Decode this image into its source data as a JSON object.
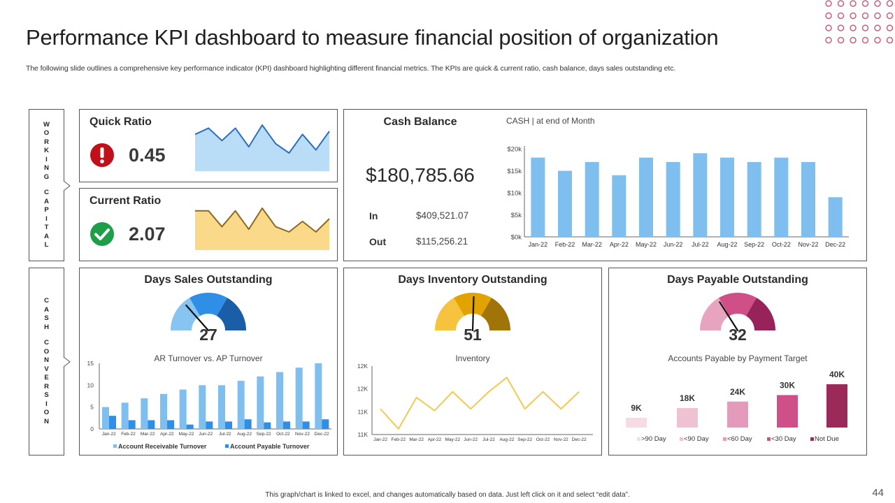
{
  "title": "Performance KPI dashboard to measure financial position of organization",
  "subtitle": "The following slide outlines a comprehensive key performance indicator (KPI) dashboard highlighting different financial metrics. The KPIs are quick & current ratio, cash balance, days sales outstanding etc.",
  "side_labels": {
    "working_capital": [
      "W",
      "O",
      "R",
      "K",
      "I",
      "N",
      "G",
      "",
      "C",
      "A",
      "P",
      "I",
      "T",
      "A",
      "L"
    ],
    "cash_conversion": [
      "C",
      "A",
      "S",
      "H",
      "",
      "C",
      "O",
      "N",
      "V",
      "E",
      "R",
      "S",
      "I",
      "O",
      "N"
    ]
  },
  "quick_ratio": {
    "label": "Quick Ratio",
    "value": "0.45",
    "status": "alert",
    "status_color": "#c0101a",
    "sparkline": [
      7,
      9,
      5,
      9,
      3,
      10,
      4,
      1,
      7,
      2,
      8
    ],
    "fill_color": "#b9dcf7",
    "line_color": "#2a6fc0"
  },
  "current_ratio": {
    "label": "Current Ratio",
    "value": "2.07",
    "status": "ok",
    "status_color": "#1f9e4a",
    "sparkline": [
      8,
      8,
      2,
      8,
      1,
      9,
      2,
      0,
      4,
      0,
      5
    ],
    "fill_color": "#fbd98a",
    "line_color": "#8c6a1a"
  },
  "cash_balance": {
    "label": "Cash Balance",
    "value": "$180,785.66",
    "in_label": "In",
    "in_value": "$409,521.07",
    "out_label": "Out",
    "out_value": "$115,256.21"
  },
  "dso": {
    "label": "Days Sales Outstanding",
    "value": "27",
    "colors": [
      "#88c4f2",
      "#2f8fe6",
      "#1a5ea8"
    ]
  },
  "dio": {
    "label": "Days Inventory Outstanding",
    "value": "51",
    "colors": [
      "#f6c33e",
      "#e2a200",
      "#a07408"
    ]
  },
  "dpo": {
    "label": "Days Payable Outstanding",
    "value": "32",
    "colors": [
      "#e8a3bf",
      "#cf4f86",
      "#98225a"
    ]
  },
  "footnote": "This graph/chart is linked to excel, and changes automatically based on data. Just left click on it and select “edit data”.",
  "page_number": "44",
  "chart_data": [
    {
      "id": "cash",
      "type": "bar",
      "title": "CASH | at end of Month",
      "categories": [
        "Jan-22",
        "Feb-22",
        "Mar-22",
        "Apr-22",
        "May-22",
        "Jun-22",
        "Jul-22",
        "Aug-22",
        "Sep-22",
        "Oct-22",
        "Nov-22",
        "Dec-22"
      ],
      "values": [
        18,
        15,
        17,
        14,
        18,
        17,
        19,
        18,
        17,
        18,
        17,
        9
      ],
      "unit": "k",
      "ylim": [
        0,
        20
      ],
      "yticks": [
        "$0k",
        "$5k",
        "$10k",
        "$15k",
        "$20k"
      ],
      "color": "#7fbfef"
    },
    {
      "id": "ar_ap",
      "type": "bar",
      "title": "AR Turnover vs. AP Turnover",
      "categories": [
        "Jan-22",
        "Feb-22",
        "Mar-22",
        "Apr-22",
        "May-22",
        "Jun-22",
        "Jul-22",
        "Aug-22",
        "Sep-22",
        "Oct-22",
        "Nov-22",
        "Dec-22"
      ],
      "series": [
        {
          "name": "Account Receivable Turnover",
          "values": [
            5,
            6,
            7,
            8,
            9,
            10,
            10,
            11,
            12,
            13,
            14,
            15
          ],
          "color": "#7fbfef"
        },
        {
          "name": "Account Payable Turnover",
          "values": [
            3,
            2,
            2,
            2,
            1,
            1.7,
            1.7,
            2.2,
            1.5,
            1.7,
            1.7,
            2.2
          ],
          "color": "#2f8fe6"
        }
      ],
      "ylim": [
        0,
        15
      ],
      "yticks": [
        "0",
        "5",
        "10",
        "15"
      ]
    },
    {
      "id": "inventory",
      "type": "line",
      "title": "Inventory",
      "categories": [
        "Jan-22",
        "Feb-22",
        "Mar-22",
        "Apr-22",
        "May-22",
        "Jun-22",
        "Jul-22",
        "Aug-22",
        "Sep-22",
        "Oct-22",
        "Nov-22",
        "Dec-22"
      ],
      "values": [
        11.45,
        11.1,
        11.65,
        11.42,
        11.75,
        11.45,
        11.75,
        12.0,
        11.45,
        11.75,
        11.45,
        11.75
      ],
      "ylim": [
        11.0,
        12.2
      ],
      "yticks": [
        "11K",
        "11K",
        "12K",
        "12K"
      ],
      "color": "#f3c94f"
    },
    {
      "id": "payable",
      "type": "bar",
      "title": "Accounts Payable by Payment Target",
      "categories": [
        ">90 Day",
        "<90 Day",
        "<60 Day",
        "<30 Day",
        "Not Due"
      ],
      "values": [
        9,
        18,
        24,
        30,
        40
      ],
      "data_labels": [
        "9K",
        "18K",
        "24K",
        "30K",
        "40K"
      ],
      "colors": [
        "#f6dbe5",
        "#efc2d3",
        "#e49bbb",
        "#cf5088",
        "#9b2a5a"
      ]
    }
  ]
}
